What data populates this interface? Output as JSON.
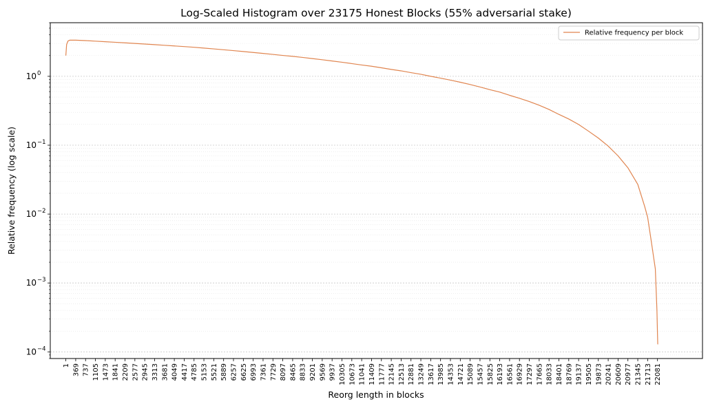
{
  "chart_data": {
    "type": "line",
    "title": "Log-Scaled Histogram over 23175 Honest Blocks (55% adversarial stake)",
    "xlabel": "Reorg length in blocks",
    "ylabel": "Relative frequency (log scale)",
    "yscale": "log",
    "xlim": [
      -580,
      23760
    ],
    "ylim": [
      8e-05,
      6
    ],
    "grid": "horizontal, major and minor, dotted",
    "legend_position": "top-right",
    "x_tick_labels": [
      "1",
      "369",
      "737",
      "1105",
      "1473",
      "1841",
      "2209",
      "2577",
      "2945",
      "3313",
      "3681",
      "4049",
      "4417",
      "4785",
      "5153",
      "5521",
      "5889",
      "6257",
      "6625",
      "6993",
      "7361",
      "7729",
      "8097",
      "8465",
      "8833",
      "9201",
      "9569",
      "9937",
      "10305",
      "10673",
      "11041",
      "11409",
      "11777",
      "12145",
      "12513",
      "12881",
      "13249",
      "13617",
      "13985",
      "14353",
      "14721",
      "15089",
      "15457",
      "15825",
      "16193",
      "16561",
      "16929",
      "17297",
      "17665",
      "18033",
      "18401",
      "18769",
      "19137",
      "19505",
      "19873",
      "20241",
      "20609",
      "20977",
      "21345",
      "21713",
      "22081"
    ],
    "y_tick_labels": [
      {
        "value": 0.0001,
        "mantissa": "10",
        "exp": "−4"
      },
      {
        "value": 0.001,
        "mantissa": "10",
        "exp": "−3"
      },
      {
        "value": 0.01,
        "mantissa": "10",
        "exp": "−2"
      },
      {
        "value": 0.1,
        "mantissa": "10",
        "exp": "−1"
      },
      {
        "value": 1,
        "mantissa": "10",
        "exp": "0"
      }
    ],
    "series": [
      {
        "name": "Relative frequency per block",
        "color": "#e0844e",
        "x": [
          1,
          30,
          80,
          150,
          369,
          737,
          1105,
          1473,
          1841,
          2209,
          2577,
          2945,
          3313,
          3681,
          4049,
          4417,
          4785,
          5153,
          5521,
          5889,
          6257,
          6625,
          6993,
          7361,
          7729,
          8097,
          8465,
          8833,
          9201,
          9569,
          9937,
          10305,
          10673,
          11041,
          11409,
          11777,
          12145,
          12513,
          12881,
          13249,
          13617,
          13985,
          14353,
          14721,
          15089,
          15457,
          15825,
          16193,
          16561,
          16929,
          17297,
          17665,
          18033,
          18401,
          18769,
          19137,
          19505,
          19873,
          20241,
          20609,
          20977,
          21345,
          21600,
          21713,
          21850,
          22000,
          22030,
          22060,
          22081,
          22090,
          22100,
          22105
        ],
        "y": [
          2.0,
          2.9,
          3.25,
          3.35,
          3.35,
          3.3,
          3.24,
          3.18,
          3.12,
          3.06,
          3.0,
          2.94,
          2.88,
          2.82,
          2.76,
          2.7,
          2.64,
          2.57,
          2.5,
          2.43,
          2.36,
          2.29,
          2.22,
          2.15,
          2.08,
          2.01,
          1.95,
          1.88,
          1.81,
          1.74,
          1.67,
          1.6,
          1.53,
          1.46,
          1.4,
          1.33,
          1.26,
          1.2,
          1.13,
          1.07,
          1.0,
          0.94,
          0.88,
          0.82,
          0.76,
          0.7,
          0.64,
          0.59,
          0.53,
          0.48,
          0.43,
          0.38,
          0.33,
          0.28,
          0.24,
          0.2,
          0.16,
          0.127,
          0.097,
          0.07,
          0.047,
          0.027,
          0.013,
          0.009,
          0.004,
          0.0016,
          0.0008,
          0.0004,
          0.00018,
          0.00013,
          0.00013,
          0.00013
        ]
      }
    ]
  }
}
